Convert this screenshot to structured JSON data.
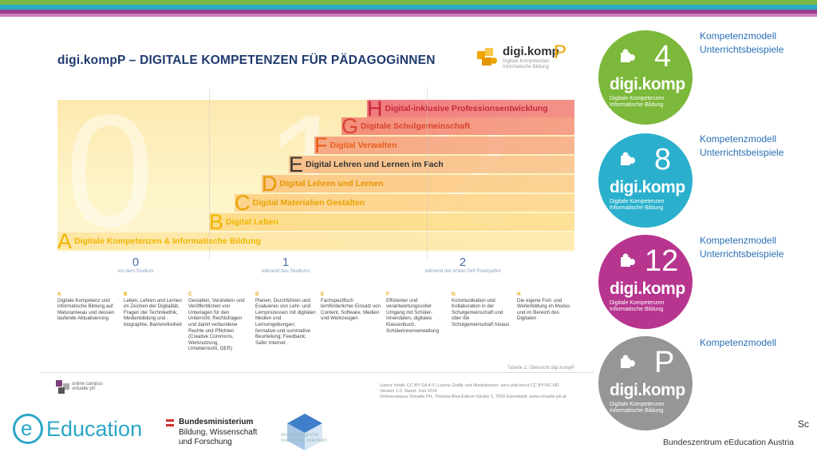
{
  "doc": {
    "title": "digi.kompP – DIGITALE KOMPETENZEN FÜR PÄDAGOGiNNEN",
    "logo": {
      "name": "digi.komp",
      "suffix": "P",
      "sub": "Digitale Kompetenzen\nInformatische Bildung"
    },
    "bg_numbers": [
      "0",
      "1",
      "2"
    ],
    "steps": [
      {
        "letter": "A",
        "label": "Digitale Kompetenzen & Informatische Bildung",
        "color": "#f0b500"
      },
      {
        "letter": "B",
        "label": "Digital Leben",
        "color": "#f0b500"
      },
      {
        "letter": "C",
        "label": "Digital Materialien Gestalten",
        "color": "#e8a200"
      },
      {
        "letter": "D",
        "label": "Digital Lehren und Lernen",
        "color": "#e39700"
      },
      {
        "letter": "E",
        "label": "Digital Lehren und Lernen im Fach",
        "color": "#333333"
      },
      {
        "letter": "F",
        "label": "Digital Verwalten",
        "color": "#e85d1a"
      },
      {
        "letter": "G",
        "label": "Digitale Schulgemeinschaft",
        "color": "#d8432e"
      },
      {
        "letter": "H",
        "label": "Digital-inklusive Professionsentwicklung",
        "color": "#c5283d"
      }
    ],
    "stages": [
      {
        "num": "0",
        "desc": "vor dem Studium"
      },
      {
        "num": "1",
        "desc": "während des Studiums"
      },
      {
        "num": "2",
        "desc": "während der ersten fünf Praxisjahre"
      }
    ],
    "columns": [
      {
        "h": "A",
        "t": "Digitale Kompetenz und informatische Bildung auf Maturaniveau und dessen laufende Aktualisierung"
      },
      {
        "h": "B",
        "t": "Leben, Lehren und Lernen im Zeichen der Digitalität, Fragen der Technikethik, Medienbildung und -biographie, Barrierefreiheit"
      },
      {
        "h": "C",
        "t": "Gestalten, Verändern und Veröffentlichen von Unterlagen für den Unterricht; Rechtsfragen und damit verbundene Rechte und Pflichten (Creative Commons, Werknutzung, Urheberrecht, OER)"
      },
      {
        "h": "D",
        "t": "Planen, Durchführen und Evaluieren von Lehr- und Lernprozessen mit digitalen Medien und Lernumgebungen; formative und summative Beurteilung; Feedback; Safer Internet"
      },
      {
        "h": "E",
        "t": "Fachspezifisch lernförderlicher Einsatz von Content, Software, Medien und Werkzeugen"
      },
      {
        "h": "F",
        "t": "Effizienter und verantwortungsvoller Umgang mit Schüler-Innendaten, digitales Klassenbuch, Schülerinnenverwaltung"
      },
      {
        "h": "G",
        "t": "Kommunikation und Kollaboration in der Schulgemeinschaft und über die Schulgemeinschaft hinaus"
      },
      {
        "h": "H",
        "t": "Die eigene Fort- und Weiterbildung im Modus und im Bereich des Digitalen"
      }
    ],
    "caption": "Tabelle 1: Übersicht digi.kompP",
    "footer_logo": "online campus virtuelle ph",
    "license": "Lizenz Inhalt: CC BY-SA 4.0 | Lizenz Grafik und Illustrationen: vers.visit.ion/ct CC BY-NC-ND\nVersion 1.0, Stand: Juni 2016\nOnlinecampus Virtuelle PH, Thomas Alva-Edison-Straße 1, 7000 Eisenstadt, www.virtuelle-ph.at"
  },
  "circles": [
    {
      "num": "4",
      "color": "#7cb83a",
      "brand": "digi.komp",
      "sub": "Digitale Kompetenzen\nInformatische Bildung",
      "links": [
        "Kompetenzmodell",
        "Unterrichtsbeispiele"
      ]
    },
    {
      "num": "8",
      "color": "#2ab0cc",
      "brand": "digi.komp",
      "sub": "Digitale Kompetenzen\nInformatische Bildung",
      "links": [
        "Kompetenzmodell",
        "Unterrichtsbeispiele"
      ]
    },
    {
      "num": "12",
      "color": "#b7358f",
      "brand": "digi.komp",
      "sub": "Digitale Kompetenzen\nInformatische Bildung",
      "links": [
        "Kompetenzmodell",
        "Unterrichtsbeispiele"
      ]
    },
    {
      "num": "P",
      "color": "#969696",
      "brand": "digi.komp",
      "sub": "Digitale Kompetenzen\nInformatische Bildung",
      "links": [
        "Kompetenzmodell"
      ]
    }
  ],
  "footer": {
    "eeducation": "Education",
    "eeducation_e": "e",
    "ministry": [
      "Bundesministerium",
      "Bildung, Wissenschaft",
      "und Forschung"
    ],
    "ph_logo": "die pädagogische hochschule österreich",
    "sc": "Sc",
    "center": "Bundeszentrum eEducation Austria"
  }
}
